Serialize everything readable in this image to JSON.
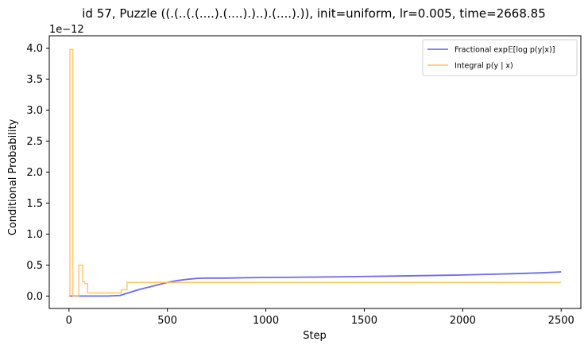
{
  "chart_data": {
    "type": "line",
    "title": "id 57, Puzzle ((.(..(.(....).(....).)..).(....).)), init=uniform, lr=0.005, time=2668.85",
    "xlabel": "Step",
    "ylabel": "Conditional Probability",
    "y_offset_label": "1e−12",
    "xlim": [
      -100,
      2600
    ],
    "ylim": [
      -0.2,
      4.2
    ],
    "x_ticks": [
      0,
      500,
      1000,
      1500,
      2000,
      2500
    ],
    "y_ticks": [
      0.0,
      0.5,
      1.0,
      1.5,
      2.0,
      2.5,
      3.0,
      3.5,
      4.0
    ],
    "x_tick_labels": [
      "0",
      "500",
      "1000",
      "1500",
      "2000",
      "2500"
    ],
    "y_tick_labels": [
      "0.0",
      "0.5",
      "1.0",
      "1.5",
      "2.0",
      "2.5",
      "3.0",
      "3.5",
      "4.0"
    ],
    "grid": false,
    "legend_position": "top-right",
    "series": [
      {
        "name": "Fractional exp𝔼[log p(y|x)]",
        "color": "#5b5bea",
        "style": "line",
        "x": [
          0,
          100,
          200,
          260,
          300,
          350,
          400,
          450,
          500,
          550,
          600,
          650,
          700,
          800,
          900,
          1000,
          1100,
          1200,
          1300,
          1400,
          1500,
          1600,
          1700,
          1800,
          1900,
          2000,
          2100,
          2200,
          2300,
          2400,
          2500
        ],
        "y": [
          0.0,
          0.0,
          0.0,
          0.01,
          0.05,
          0.1,
          0.14,
          0.18,
          0.22,
          0.25,
          0.27,
          0.285,
          0.29,
          0.29,
          0.295,
          0.3,
          0.302,
          0.305,
          0.308,
          0.312,
          0.316,
          0.32,
          0.325,
          0.33,
          0.335,
          0.34,
          0.348,
          0.356,
          0.365,
          0.375,
          0.39
        ]
      },
      {
        "name": "Integral p(y | x)",
        "color": "#fdbf55",
        "style": "step",
        "x": [
          0,
          5,
          5,
          20,
          20,
          50,
          50,
          70,
          70,
          80,
          80,
          95,
          95,
          265,
          265,
          295,
          295,
          500,
          500,
          2500
        ],
        "y": [
          0.0,
          0.0,
          3.98,
          3.98,
          0.0,
          0.0,
          0.5,
          0.5,
          0.23,
          0.23,
          0.2,
          0.2,
          0.05,
          0.05,
          0.1,
          0.1,
          0.22,
          0.22,
          0.22,
          0.22
        ]
      }
    ]
  }
}
